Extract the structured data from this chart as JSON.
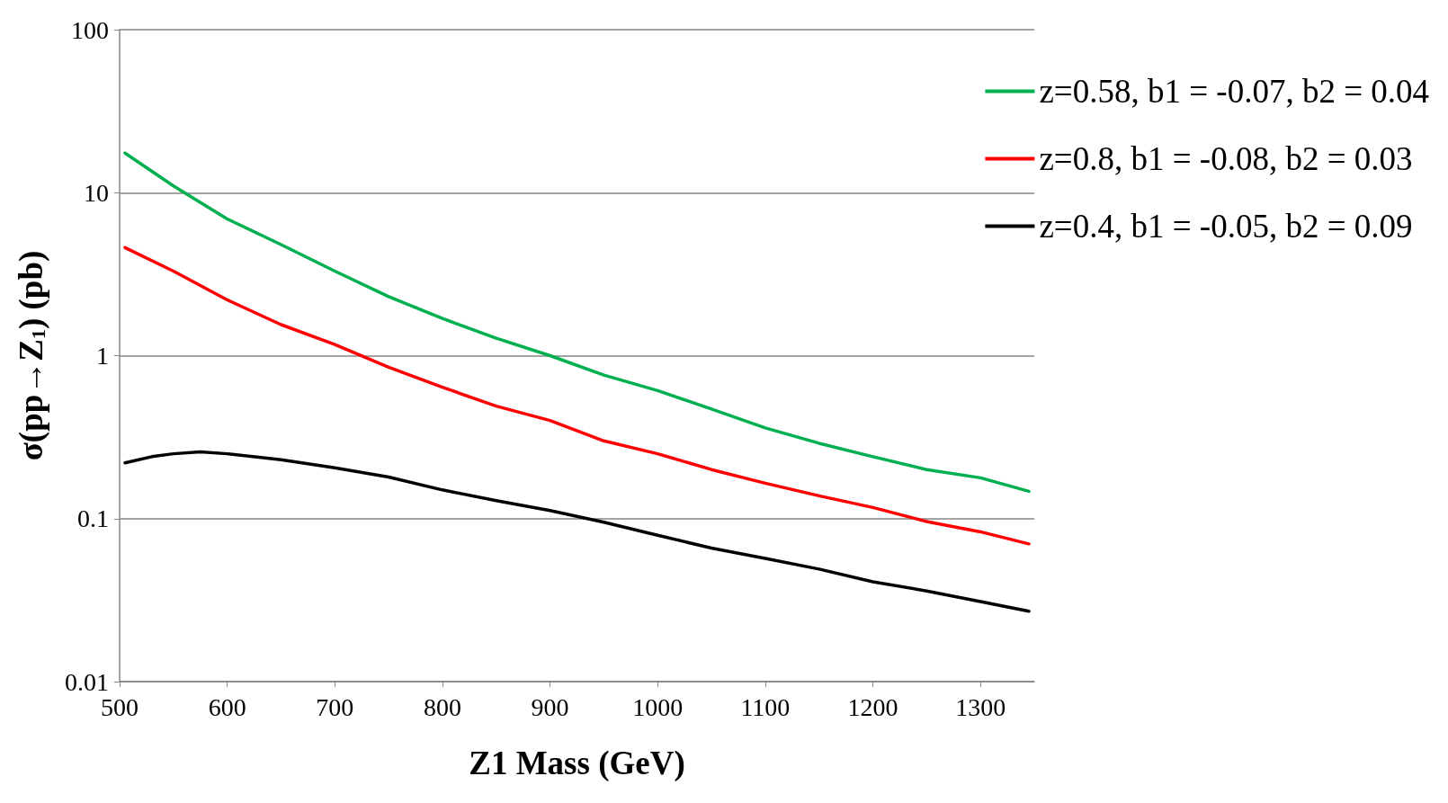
{
  "chart_data": {
    "type": "line",
    "xlabel": "Z1 Mass (GeV)",
    "ylabel": "σ(pp→Z$_{1}$) (pb)",
    "log": "y",
    "grid": "y",
    "legend": "top right",
    "marker": "none",
    "line_style": "solid",
    "x": [
      505,
      550,
      600,
      650,
      700,
      750,
      800,
      850,
      900,
      950,
      1000,
      1050,
      1100,
      1150,
      1200,
      1250,
      1300,
      1345
    ],
    "xlim": [
      500,
      1350
    ],
    "xticks": [
      500,
      600,
      700,
      800,
      900,
      1000,
      1100,
      1200,
      1300
    ],
    "ylim": [
      0.01,
      100
    ],
    "yticks": [
      0.01,
      0.1,
      1,
      10,
      100
    ],
    "series": [
      {
        "name": "z=0.58, b1 = -0.07, b2 = 0.04",
        "color": "#00b050",
        "values": [
          17.5,
          11,
          6.9,
          4.8,
          3.3,
          2.3,
          1.69,
          1.28,
          1.0,
          0.76,
          0.61,
          0.47,
          0.36,
          0.29,
          0.24,
          0.2,
          0.178,
          0.147
        ]
      },
      {
        "name": "z=0.8, b1 = -0.08, b2 = 0.03",
        "color": "#ff0000",
        "values": [
          4.6,
          3.3,
          2.2,
          1.55,
          1.17,
          0.85,
          0.64,
          0.49,
          0.4,
          0.3,
          0.25,
          0.2,
          0.165,
          0.138,
          0.117,
          0.096,
          0.083,
          0.07
        ]
      },
      {
        "name": "z=0.4, b1 = -0.05, b2 = 0.09",
        "color": "#000000",
        "x": [
          505,
          530,
          550,
          575,
          600,
          650,
          700,
          750,
          800,
          850,
          900,
          950,
          1000,
          1050,
          1100,
          1150,
          1200,
          1250,
          1300,
          1345
        ],
        "values": [
          0.22,
          0.24,
          0.25,
          0.257,
          0.25,
          0.23,
          0.205,
          0.18,
          0.15,
          0.129,
          0.112,
          0.095,
          0.079,
          0.066,
          0.057,
          0.049,
          0.041,
          0.036,
          0.031,
          0.027
        ]
      }
    ]
  }
}
